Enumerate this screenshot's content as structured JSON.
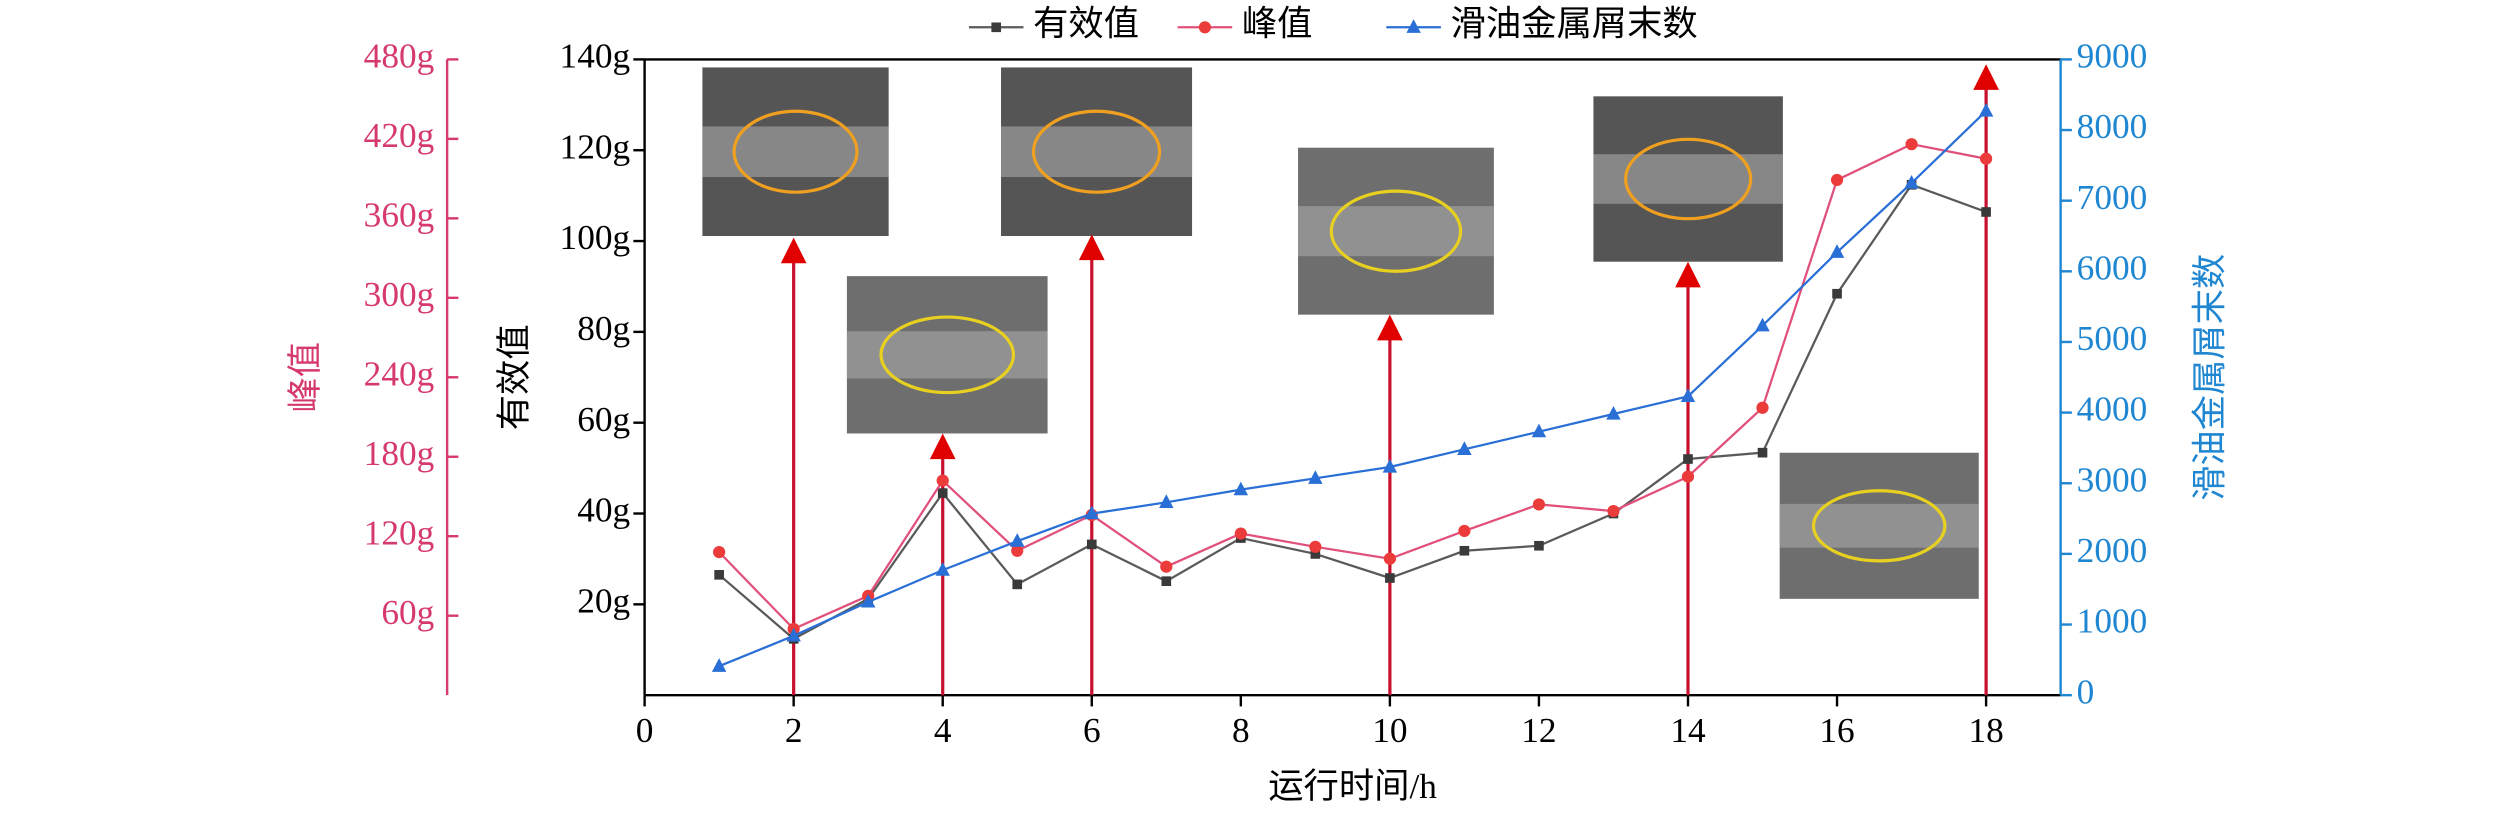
{
  "chart_data": {
    "type": "line",
    "xlabel": "运行时间/h",
    "ylabel": "有效值",
    "y2label": "滑油金属屑末数",
    "y3label": "峰值",
    "xlim": [
      0,
      19
    ],
    "xticks": [
      0,
      2,
      4,
      6,
      8,
      10,
      12,
      14,
      16,
      18
    ],
    "ylim": [
      0,
      140
    ],
    "yticks": [
      {
        "value": 20,
        "label": "20g"
      },
      {
        "value": 40,
        "label": "40g"
      },
      {
        "value": 60,
        "label": "60g"
      },
      {
        "value": 80,
        "label": "80g"
      },
      {
        "value": 100,
        "label": "100g"
      },
      {
        "value": 120,
        "label": "120g"
      },
      {
        "value": 140,
        "label": "140g"
      }
    ],
    "y2lim": [
      0,
      9000
    ],
    "y2ticks": [
      0,
      1000,
      2000,
      3000,
      4000,
      5000,
      6000,
      7000,
      8000,
      9000
    ],
    "y3lim": [
      0,
      480
    ],
    "y3ticks": [
      {
        "value": 60,
        "label": "60g"
      },
      {
        "value": 120,
        "label": "120g"
      },
      {
        "value": 180,
        "label": "180g"
      },
      {
        "value": 240,
        "label": "240g"
      },
      {
        "value": 300,
        "label": "300g"
      },
      {
        "value": 360,
        "label": "360g"
      },
      {
        "value": 420,
        "label": "420g"
      },
      {
        "value": 480,
        "label": "480g"
      }
    ],
    "x": [
      1,
      2,
      3,
      4,
      5,
      6,
      7,
      8,
      9,
      10,
      11,
      12,
      13,
      14,
      15,
      16,
      17,
      18
    ],
    "marker_x": [
      2,
      4,
      6,
      10,
      14,
      18
    ],
    "series": [
      {
        "name": "有效值",
        "color": "#3a3a3a",
        "line_color": "#5a5a5a",
        "marker": "square",
        "axis": "y",
        "values": [
          26.5,
          12.4,
          21.2,
          44.5,
          24.4,
          33.2,
          25.1,
          34.6,
          31.1,
          25.8,
          31.8,
          32.9,
          40,
          52,
          53.4,
          88.4,
          112.4,
          106.4
        ]
      },
      {
        "name": "峰值",
        "color": "#ec3b3b",
        "line_color": "#e0507a",
        "marker": "circle",
        "axis": "y3",
        "values": [
          108,
          50,
          75,
          162,
          109,
          136,
          97,
          122,
          112,
          103,
          124,
          144,
          139,
          165,
          217,
          389,
          416,
          405
        ]
      },
      {
        "name": "滑油金属屑末数",
        "color": "#2a6fd6",
        "line_color": "#2a6fd6",
        "marker": "triangle",
        "axis": "y2",
        "values": [
          410,
          840,
          1320,
          1770,
          2180,
          2570,
          2730,
          2910,
          3070,
          3230,
          3480,
          3730,
          3980,
          4230,
          5230,
          6270,
          7250,
          8270
        ]
      }
    ],
    "y_color": "#000000",
    "y2_color": "#1f86d1",
    "y3_color": "#d63a6c",
    "arrow_color": "#c8102e"
  }
}
